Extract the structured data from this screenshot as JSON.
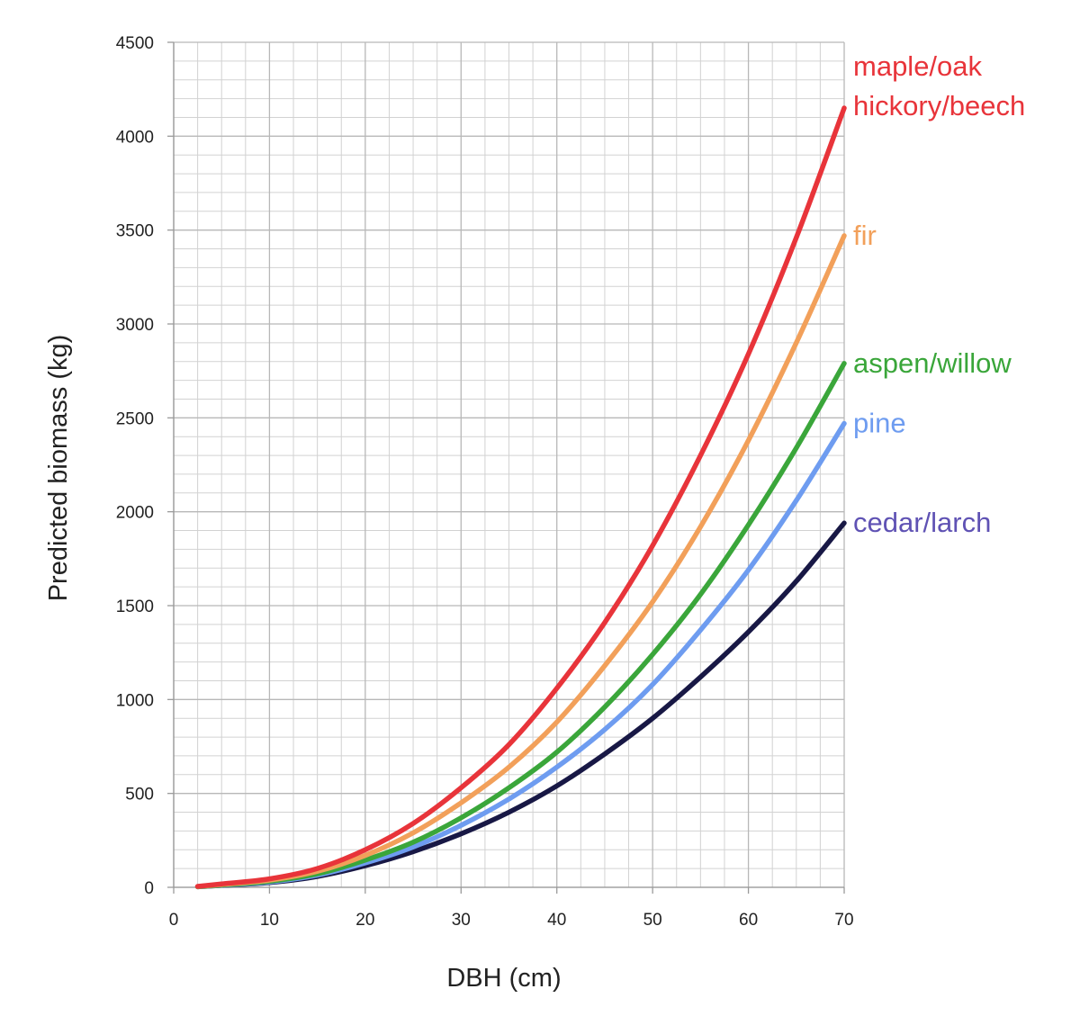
{
  "chart_data": {
    "type": "line",
    "title": "",
    "xlabel": "DBH (cm)",
    "ylabel": "Predicted biomass (kg)",
    "xlim": [
      0,
      70
    ],
    "ylim": [
      0,
      4500
    ],
    "x_major_step": 10,
    "x_minor_step": 2.5,
    "y_major_step": 500,
    "y_minor_step": 100,
    "grid": true,
    "legend": "right-end labels",
    "x_ticks": [
      0,
      10,
      20,
      30,
      40,
      50,
      60,
      70
    ],
    "y_ticks": [
      0,
      500,
      1000,
      1500,
      2000,
      2500,
      3000,
      3500,
      4000,
      4500
    ],
    "x": [
      2.5,
      5,
      10,
      15,
      20,
      25,
      30,
      35,
      40,
      45,
      50,
      55,
      60,
      65,
      70
    ],
    "series": [
      {
        "name": "maple/oak hickory/beech",
        "label_lines": [
          "maple/oak",
          "hickory/beech"
        ],
        "color": "#e8343a",
        "label_color": "#e8343a",
        "values": [
          5,
          18,
          45,
          100,
          200,
          340,
          530,
          760,
          1060,
          1410,
          1820,
          2300,
          2840,
          3460,
          4150
        ]
      },
      {
        "name": "fir",
        "label_lines": [
          "fir"
        ],
        "color": "#f2a05a",
        "label_color": "#f2a05a",
        "values": [
          4,
          15,
          38,
          85,
          170,
          290,
          450,
          640,
          880,
          1180,
          1520,
          1920,
          2380,
          2900,
          3470
        ]
      },
      {
        "name": "aspen/willow",
        "label_lines": [
          "aspen/willow"
        ],
        "color": "#3aa63a",
        "label_color": "#3aa63a",
        "values": [
          3,
          12,
          32,
          72,
          145,
          240,
          370,
          530,
          720,
          960,
          1240,
          1560,
          1930,
          2340,
          2790
        ]
      },
      {
        "name": "pine",
        "label_lines": [
          "pine"
        ],
        "color": "#6e9cf0",
        "label_color": "#6e9cf0",
        "values": [
          3,
          11,
          28,
          65,
          130,
          215,
          330,
          470,
          640,
          840,
          1080,
          1370,
          1690,
          2060,
          2470
        ]
      },
      {
        "name": "cedar/larch",
        "label_lines": [
          "cedar/larch"
        ],
        "color": "#181845",
        "label_color": "#5f52b4",
        "values": [
          3,
          10,
          25,
          58,
          115,
          190,
          285,
          400,
          540,
          710,
          900,
          1120,
          1360,
          1630,
          1940
        ]
      }
    ]
  }
}
